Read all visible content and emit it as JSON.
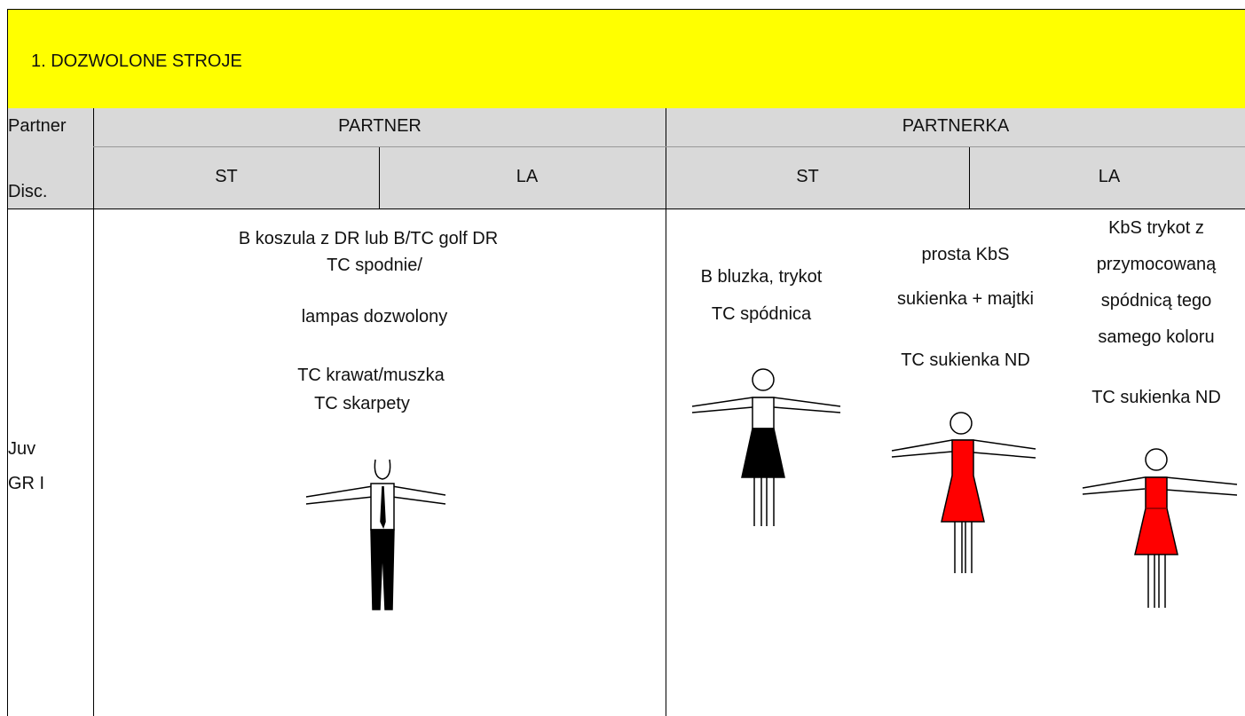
{
  "title": "1. DOZWOLONE STROJE",
  "table": {
    "corner": [
      "Partner",
      "Disc."
    ],
    "groups": [
      "PARTNER",
      "PARTNERKA"
    ],
    "disciplines": [
      "ST",
      "LA",
      "ST",
      "LA"
    ],
    "rows": [
      {
        "label": [
          "Juv",
          "GR I"
        ],
        "partner": [
          "B koszula z DR lub B/TC golf DR",
          "TC spodnie/",
          "lampas dozwolony",
          "TC krawat/muszka",
          "TC skarpety"
        ],
        "partnerka_st": [
          "B bluzka, trykot",
          "TC spódnica"
        ],
        "partnerka_dress": [
          "prosta KbS",
          "sukienka + majtki",
          "TC sukienka ND"
        ],
        "partnerka_la": [
          "KbS trykot z",
          "przymocowaną",
          "spódnicą tego",
          "samego koloru",
          "TC sukienka ND"
        ]
      }
    ]
  }
}
